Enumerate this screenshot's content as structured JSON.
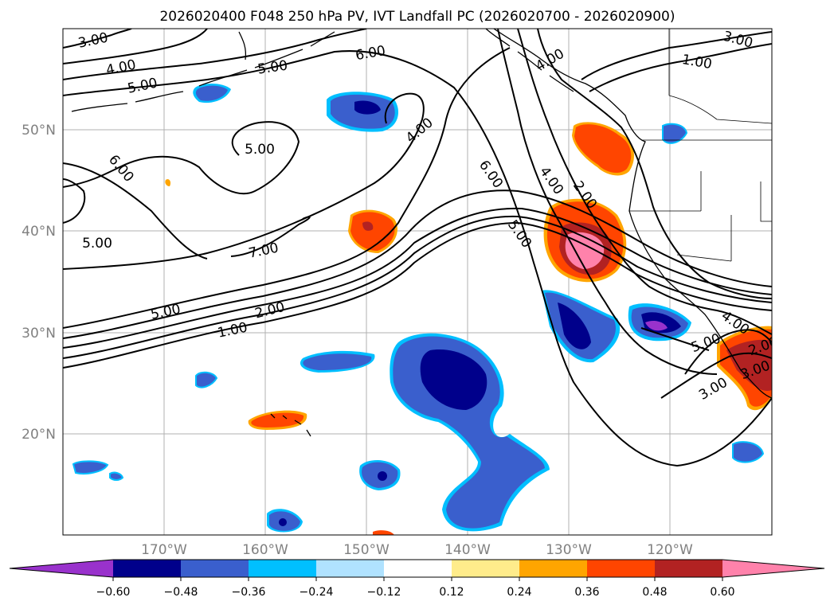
{
  "title": "2026020400 F048 250 hPa PV, IVT Landfall PC (2026020700 - 2026020900)",
  "map": {
    "lat_labels": [
      "50°N",
      "40°N",
      "30°N",
      "20°N"
    ],
    "lon_labels": [
      "170°W",
      "160°W",
      "150°W",
      "140°W",
      "130°W",
      "120°W"
    ]
  },
  "contour_labels": [
    "3.00",
    "4.00",
    "5.00",
    "6.00",
    "5.00",
    "4.00",
    "5.00",
    "6.00",
    "4.00",
    "5.00",
    "7.00",
    "5.00",
    "2.00",
    "1.00",
    "6.00",
    "4.00",
    "2.00",
    "5.00",
    "3.00",
    "1.00",
    "3.00",
    "4.00",
    "5.00",
    "3.00",
    "2.00"
  ],
  "colorbar": {
    "ticks": [
      "−0.60",
      "−0.48",
      "−0.36",
      "−0.24",
      "−0.12",
      "0.12",
      "0.24",
      "0.36",
      "0.48",
      "0.60"
    ],
    "colors": [
      "#9932cc",
      "#00008b",
      "#3a5fcd",
      "#00bfff",
      "#b0e2ff",
      "#ffffff",
      "#ffec8b",
      "#ffa500",
      "#ff4500",
      "#b22222",
      "#ff82ab"
    ]
  }
}
